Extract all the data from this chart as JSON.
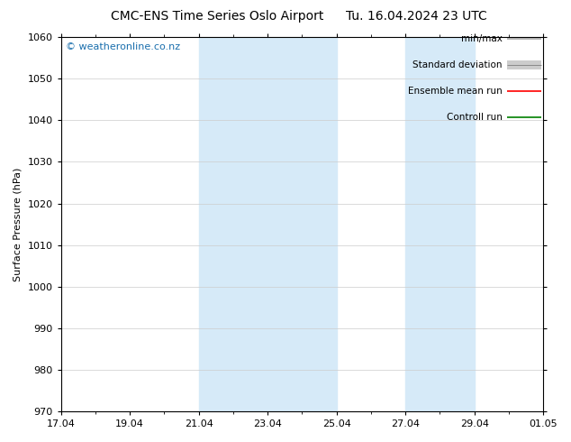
{
  "title": "CMC-ENS Time Series Oslo Airport",
  "title2": "Tu. 16.04.2024 23 UTC",
  "ylabel": "Surface Pressure (hPa)",
  "ylim": [
    970,
    1060
  ],
  "yticks": [
    970,
    980,
    990,
    1000,
    1010,
    1020,
    1030,
    1040,
    1050,
    1060
  ],
  "xtick_positions": [
    0,
    2,
    4,
    6,
    8,
    10,
    12,
    14
  ],
  "xtick_labels": [
    "17.04",
    "19.04",
    "21.04",
    "23.04",
    "25.04",
    "27.04",
    "29.04",
    "01.05"
  ],
  "shaded_regions": [
    {
      "x_start": 4,
      "x_end": 8,
      "color": "#d6eaf8"
    },
    {
      "x_start": 10,
      "x_end": 12,
      "color": "#d6eaf8"
    }
  ],
  "watermark_text": "© weatheronline.co.nz",
  "watermark_color": "#1a6fad",
  "legend_items": [
    {
      "label": "min/max",
      "color": "#aaaaaa",
      "lw": 1.2,
      "style": "thin"
    },
    {
      "label": "Standard deviation",
      "color": "#cccccc",
      "lw": 7,
      "style": "thick"
    },
    {
      "label": "Ensemble mean run",
      "color": "red",
      "lw": 1.2,
      "style": "thin"
    },
    {
      "label": "Controll run",
      "color": "green",
      "lw": 1.2,
      "style": "thin"
    }
  ],
  "grid_color": "#cccccc",
  "bg_color": "#ffffff",
  "plot_bg_color": "#ffffff",
  "title_fontsize": 10,
  "tick_fontsize": 8,
  "ylabel_fontsize": 8,
  "legend_fontsize": 7.5,
  "watermark_fontsize": 8
}
